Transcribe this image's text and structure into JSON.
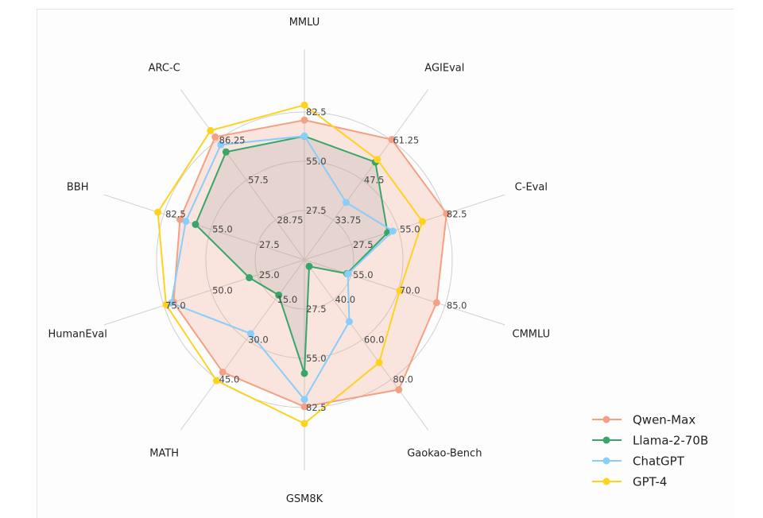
{
  "chart_data": {
    "type": "radar",
    "title": "",
    "axes": [
      {
        "name": "MMLU",
        "ticks": [
          27.5,
          55.0,
          82.5
        ],
        "tick_labels": [
          "27.5",
          "55.0",
          "82.5"
        ]
      },
      {
        "name": "AGIEval",
        "ticks": [
          33.75,
          47.5,
          61.25
        ],
        "tick_labels": [
          "33.75",
          "47.5",
          "61.25"
        ]
      },
      {
        "name": "C-Eval",
        "ticks": [
          27.5,
          55.0,
          82.5
        ],
        "tick_labels": [
          "27.5",
          "55.0",
          "82.5"
        ]
      },
      {
        "name": "CMMLU",
        "ticks": [
          55.0,
          70.0,
          85.0
        ],
        "tick_labels": [
          "55.0",
          "70.0",
          "85.0"
        ]
      },
      {
        "name": "Gaokao-Bench",
        "ticks": [
          40.0,
          60.0,
          80.0
        ],
        "tick_labels": [
          "40.0",
          "60.0",
          "80.0"
        ]
      },
      {
        "name": "GSM8K",
        "ticks": [
          27.5,
          55.0,
          82.5
        ],
        "tick_labels": [
          "27.5",
          "55.0",
          "82.5"
        ]
      },
      {
        "name": "MATH",
        "ticks": [
          15.0,
          30.0,
          45.0
        ],
        "tick_labels": [
          "15.0",
          "30.0",
          "45.0"
        ]
      },
      {
        "name": "HumanEval",
        "ticks": [
          25.0,
          50.0,
          75.0
        ],
        "tick_labels": [
          "25.0",
          "50.0",
          "75.0"
        ]
      },
      {
        "name": "BBH",
        "ticks": [
          27.5,
          55.0,
          82.5
        ],
        "tick_labels": [
          "27.5",
          "55.0",
          "82.5"
        ]
      },
      {
        "name": "ARC-C",
        "ticks": [
          28.75,
          57.5,
          86.25
        ],
        "tick_labels": [
          "28.75",
          "57.5",
          "86.25"
        ]
      }
    ],
    "series": [
      {
        "name": "Qwen-Max",
        "color": "#f4a083",
        "filled": true,
        "values": [
          78.0,
          61.5,
          83.4,
          82.3,
          85.2,
          82.0,
          42.3,
          69.8,
          73.0,
          88.6
        ]
      },
      {
        "name": "Llama-2-70B",
        "color": "#3aa56a",
        "filled": true,
        "values": [
          69.0,
          53.7,
          48.8,
          53.6,
          23.3,
          63.4,
          13.3,
          29.4,
          63.9,
          77.8
        ]
      },
      {
        "name": "ChatGPT",
        "color": "#87cefa",
        "filled": false,
        "values": [
          69.1,
          39.8,
          51.9,
          53.9,
          51.0,
          78.0,
          27.8,
          71.0,
          69.6,
          83.0
        ]
      },
      {
        "name": "GPT-4",
        "color": "#ffd21f",
        "filled": false,
        "values": [
          86.4,
          54.6,
          69.2,
          70.5,
          71.6,
          91.4,
          45.5,
          73.8,
          86.0,
          93.2
        ]
      }
    ],
    "grid": true,
    "legend_position": "bottom-right"
  }
}
